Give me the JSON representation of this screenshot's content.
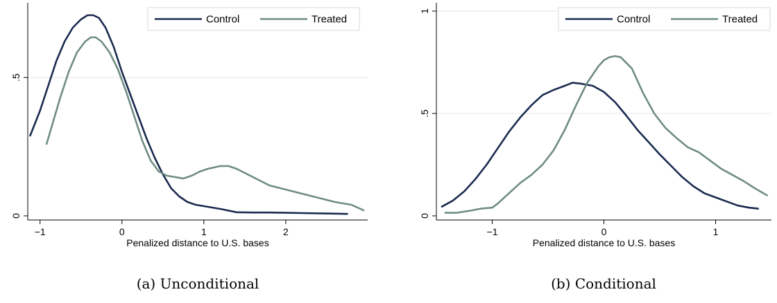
{
  "chart_data": [
    {
      "type": "line",
      "caption": "(a) Unconditional",
      "xlabel": "Penalized distance to U.S. bases",
      "ylabel": "",
      "xlim": [
        -1.15,
        3.0
      ],
      "ylim": [
        0,
        0.74
      ],
      "xticks": [
        -1,
        0,
        1,
        2
      ],
      "yticks": [
        0,
        0.5
      ],
      "xtick_labels": [
        "−1",
        "0",
        "1",
        "2"
      ],
      "ytick_labels": [
        "0",
        ".5"
      ],
      "grid": true,
      "legend_position": "top-right",
      "series": [
        {
          "name": "Control",
          "color": "#1a2a4f",
          "x": [
            -1.12,
            -1.0,
            -0.9,
            -0.8,
            -0.7,
            -0.6,
            -0.5,
            -0.42,
            -0.35,
            -0.28,
            -0.2,
            -0.1,
            0.0,
            0.1,
            0.2,
            0.3,
            0.4,
            0.5,
            0.6,
            0.7,
            0.8,
            0.9,
            1.0,
            1.2,
            1.4,
            1.6,
            1.8,
            2.0,
            2.2,
            2.4,
            2.6,
            2.75
          ],
          "y": [
            0.29,
            0.38,
            0.47,
            0.56,
            0.63,
            0.68,
            0.71,
            0.725,
            0.725,
            0.715,
            0.68,
            0.61,
            0.52,
            0.44,
            0.36,
            0.28,
            0.21,
            0.15,
            0.1,
            0.07,
            0.05,
            0.04,
            0.035,
            0.025,
            0.013,
            0.012,
            0.012,
            0.011,
            0.01,
            0.009,
            0.008,
            0.007
          ]
        },
        {
          "name": "Treated",
          "color": "#6f8c83",
          "x": [
            -0.92,
            -0.85,
            -0.75,
            -0.65,
            -0.55,
            -0.45,
            -0.38,
            -0.32,
            -0.25,
            -0.15,
            -0.05,
            0.05,
            0.15,
            0.25,
            0.35,
            0.45,
            0.55,
            0.65,
            0.75,
            0.85,
            0.95,
            1.05,
            1.2,
            1.3,
            1.4,
            1.5,
            1.6,
            1.7,
            1.8,
            2.0,
            2.2,
            2.4,
            2.6,
            2.8,
            2.95
          ],
          "y": [
            0.26,
            0.33,
            0.43,
            0.52,
            0.59,
            0.63,
            0.645,
            0.645,
            0.63,
            0.59,
            0.53,
            0.45,
            0.36,
            0.27,
            0.2,
            0.16,
            0.145,
            0.14,
            0.135,
            0.145,
            0.16,
            0.17,
            0.18,
            0.18,
            0.17,
            0.155,
            0.14,
            0.125,
            0.11,
            0.095,
            0.08,
            0.065,
            0.05,
            0.04,
            0.02
          ]
        }
      ]
    },
    {
      "type": "line",
      "caption": "(b) Conditional",
      "xlabel": "Penalized distance to U.S. bases",
      "ylabel": "",
      "xlim": [
        -1.5,
        1.5
      ],
      "ylim": [
        0,
        1.0
      ],
      "xticks": [
        -1,
        0,
        1
      ],
      "yticks": [
        0,
        0.5,
        1
      ],
      "xtick_labels": [
        "−1",
        "0",
        "1"
      ],
      "ytick_labels": [
        "0",
        ".5",
        "1"
      ],
      "grid": true,
      "legend_position": "top-right",
      "series": [
        {
          "name": "Control",
          "color": "#1a2a4f",
          "x": [
            -1.45,
            -1.35,
            -1.25,
            -1.15,
            -1.05,
            -0.95,
            -0.85,
            -0.75,
            -0.65,
            -0.55,
            -0.45,
            -0.35,
            -0.28,
            -0.2,
            -0.1,
            0.0,
            0.1,
            0.2,
            0.3,
            0.4,
            0.5,
            0.6,
            0.7,
            0.8,
            0.9,
            1.0,
            1.1,
            1.2,
            1.3,
            1.38
          ],
          "y": [
            0.045,
            0.075,
            0.12,
            0.18,
            0.25,
            0.33,
            0.41,
            0.48,
            0.54,
            0.59,
            0.615,
            0.635,
            0.65,
            0.645,
            0.635,
            0.605,
            0.555,
            0.49,
            0.42,
            0.36,
            0.3,
            0.245,
            0.19,
            0.145,
            0.11,
            0.09,
            0.07,
            0.05,
            0.04,
            0.035
          ]
        },
        {
          "name": "Treated",
          "color": "#6f8c83",
          "x": [
            -1.42,
            -1.32,
            -1.2,
            -1.1,
            -1.0,
            -0.95,
            -0.85,
            -0.75,
            -0.65,
            -0.55,
            -0.45,
            -0.35,
            -0.25,
            -0.15,
            -0.05,
            0.0,
            0.05,
            0.1,
            0.15,
            0.25,
            0.35,
            0.45,
            0.55,
            0.65,
            0.75,
            0.85,
            0.95,
            1.05,
            1.15,
            1.25,
            1.35,
            1.46
          ],
          "y": [
            0.015,
            0.015,
            0.025,
            0.035,
            0.04,
            0.06,
            0.11,
            0.16,
            0.2,
            0.25,
            0.32,
            0.42,
            0.54,
            0.65,
            0.73,
            0.76,
            0.775,
            0.78,
            0.775,
            0.72,
            0.6,
            0.5,
            0.43,
            0.38,
            0.335,
            0.31,
            0.27,
            0.23,
            0.2,
            0.17,
            0.135,
            0.1
          ]
        }
      ]
    }
  ]
}
